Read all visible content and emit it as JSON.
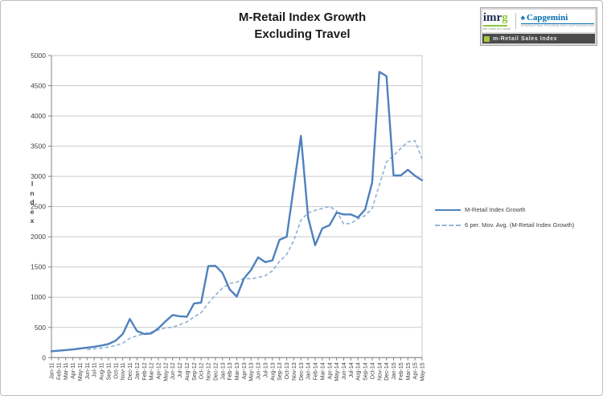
{
  "figure": {
    "title_line1": "M-Retail Index Growth",
    "title_line2": "Excluding Travel"
  },
  "branding": {
    "imrg_main": "imr",
    "imrg_g": "g",
    "imrg_tagline": "the voice of e-retail",
    "capgemini_spade_icon": "spade-icon",
    "capgemini_text": "Capgemini",
    "capgemini_tagline": "CONSULTING TECHNOLOGY OUTSOURCING",
    "banner_text": "m-Retail Sales Index",
    "accent_green": "#a4c639",
    "imrg_navy": "#1e2c52",
    "capgemini_blue": "#0070ad",
    "banner_bg": "#4b4b4d"
  },
  "chart_data": {
    "type": "line",
    "title": "M-Retail Index Growth Excluding Travel",
    "xlabel": "",
    "ylabel": "Index",
    "ylim": [
      0,
      5000
    ],
    "ytick_step": 500,
    "grid": "horizontal",
    "legend_position": "right",
    "x_categories": [
      "Jan-11",
      "Feb-11",
      "Mar-11",
      "Apr-11",
      "May-11",
      "Jun-11",
      "Jul-11",
      "Aug-11",
      "Sep-11",
      "Oct-11",
      "Nov-11",
      "Dec-11",
      "Jan-12",
      "Feb-12",
      "Mar-12",
      "Apr-12",
      "May-12",
      "Jun-12",
      "Jul-12",
      "Aug-12",
      "Sep-12",
      "Oct-12",
      "Nov-12",
      "Dec-12",
      "Jan-13",
      "Feb-13",
      "Mar-13",
      "Apr-13",
      "May-13",
      "Jun-13",
      "Jul-13",
      "Aug-13",
      "Sep-13",
      "Oct-13",
      "Nov-13",
      "Dec-13",
      "Jan-14",
      "Feb-14",
      "Mar-14",
      "Apr-14",
      "May-14",
      "Jun-14",
      "Jul-14",
      "Aug-14",
      "Sep-14",
      "Oct-14",
      "Nov-14",
      "Dec-14",
      "Jan-15",
      "Feb-15",
      "Mar-15",
      "Apr-15",
      "May-15"
    ],
    "series": [
      {
        "name": "M-Retail Index Growth",
        "style": "solid",
        "color": "#4f81bd",
        "values": [
          105,
          115,
          125,
          135,
          150,
          165,
          180,
          200,
          225,
          280,
          390,
          640,
          440,
          390,
          400,
          485,
          600,
          705,
          685,
          675,
          895,
          910,
          1515,
          1520,
          1400,
          1130,
          1010,
          1310,
          1450,
          1660,
          1580,
          1610,
          1950,
          2000,
          2830,
          3670,
          2320,
          1860,
          2140,
          2190,
          2400,
          2370,
          2370,
          2320,
          2450,
          2900,
          4730,
          4660,
          3015,
          3015,
          3110,
          3010,
          2935
        ]
      },
      {
        "name": "6 per. Mov. Avg. (M-Retail Index Growth)",
        "style": "dashed",
        "color": "#95b3d7",
        "derived": "trailing 6-period moving average of series 0",
        "period": 6
      }
    ]
  }
}
